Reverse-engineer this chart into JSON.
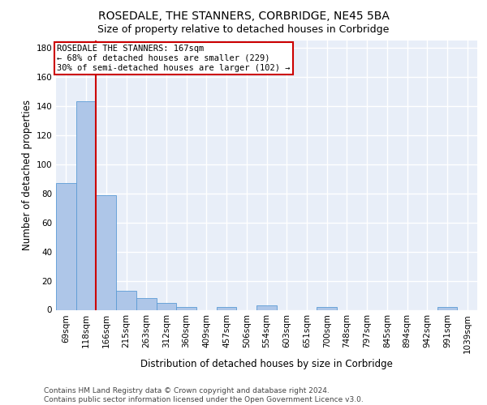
{
  "title": "ROSEDALE, THE STANNERS, CORBRIDGE, NE45 5BA",
  "subtitle": "Size of property relative to detached houses in Corbridge",
  "xlabel": "Distribution of detached houses by size in Corbridge",
  "ylabel": "Number of detached properties",
  "categories": [
    "69sqm",
    "118sqm",
    "166sqm",
    "215sqm",
    "263sqm",
    "312sqm",
    "360sqm",
    "409sqm",
    "457sqm",
    "506sqm",
    "554sqm",
    "603sqm",
    "651sqm",
    "700sqm",
    "748sqm",
    "797sqm",
    "845sqm",
    "894sqm",
    "942sqm",
    "991sqm",
    "1039sqm"
  ],
  "values": [
    87,
    143,
    79,
    13,
    8,
    5,
    2,
    0,
    2,
    0,
    3,
    0,
    0,
    2,
    0,
    0,
    0,
    0,
    0,
    2,
    0
  ],
  "bar_color": "#aec6e8",
  "bar_edge_color": "#5b9bd5",
  "vline_index": 1.5,
  "vline_color": "#cc0000",
  "annotation_text": "ROSEDALE THE STANNERS: 167sqm\n← 68% of detached houses are smaller (229)\n30% of semi-detached houses are larger (102) →",
  "ylim": [
    0,
    185
  ],
  "yticks": [
    0,
    20,
    40,
    60,
    80,
    100,
    120,
    140,
    160,
    180
  ],
  "background_color": "#e8eef8",
  "grid_color": "#ffffff",
  "footer_line1": "Contains HM Land Registry data © Crown copyright and database right 2024.",
  "footer_line2": "Contains public sector information licensed under the Open Government Licence v3.0.",
  "title_fontsize": 10,
  "subtitle_fontsize": 9,
  "label_fontsize": 8.5,
  "tick_fontsize": 7.5,
  "annot_fontsize": 7.5,
  "footer_fontsize": 6.5
}
